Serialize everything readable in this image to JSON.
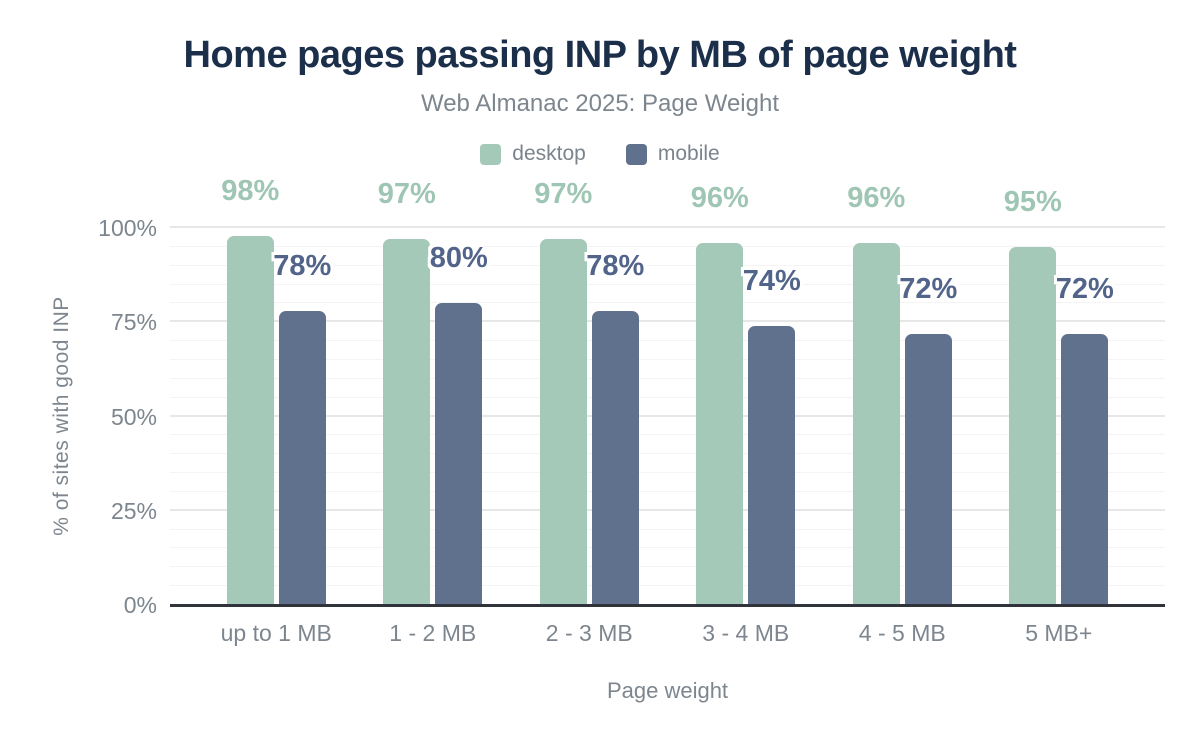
{
  "chart_data": {
    "type": "bar",
    "title": "Home pages passing INP by MB of page weight",
    "subtitle": "Web Almanac 2025: Page Weight",
    "categories": [
      "up to 1 MB",
      "1 - 2 MB",
      "2 - 3 MB",
      "3 - 4 MB",
      "4 - 5 MB",
      "5 MB+"
    ],
    "series": [
      {
        "name": "desktop",
        "color": "#a5c9b8",
        "label_color": "#9fc6b4",
        "values": [
          98,
          97,
          97,
          96,
          96,
          95
        ],
        "labels": [
          "98%",
          "97%",
          "97%",
          "96%",
          "96%",
          "95%"
        ]
      },
      {
        "name": "mobile",
        "color": "#5f718c",
        "label_color": "#52648a",
        "values": [
          78,
          80,
          78,
          74,
          72,
          72
        ],
        "labels": [
          "78%",
          "80%",
          "78%",
          "74%",
          "72%",
          "72%"
        ]
      }
    ],
    "xlabel": "Page weight",
    "ylabel": "% of sites with good INP",
    "ylim": [
      0,
      100
    ],
    "yticks": [
      0,
      25,
      50,
      75,
      100
    ],
    "ytick_labels": [
      "0%",
      "25%",
      "50%",
      "75%",
      "100%"
    ],
    "minor_grid_step": 5,
    "major_grid_step": 25,
    "grid": "on",
    "legend_position": "top",
    "colors": {
      "title": "#1b2e4a",
      "muted_text": "#7d868e",
      "grid_major": "#e7e7e7",
      "grid_minor": "#f4f4f4",
      "axis_line": "#30343a",
      "background": "#ffffff"
    }
  }
}
